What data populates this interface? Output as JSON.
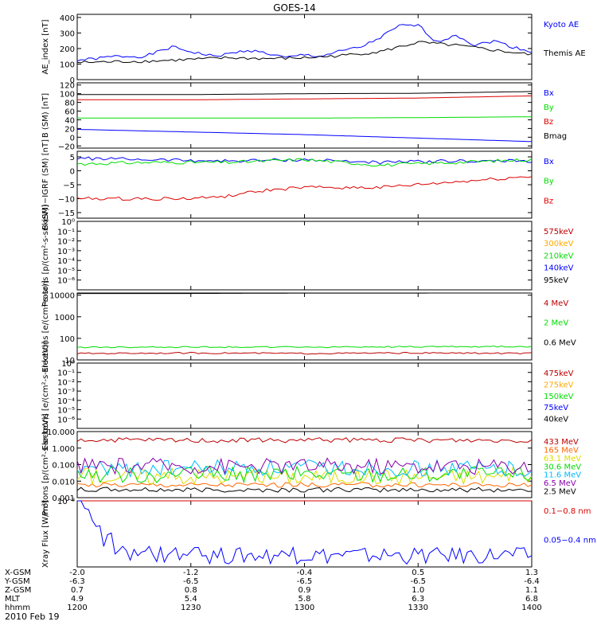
{
  "title": "GOES-14",
  "date_label": "2010 Feb 19",
  "ephemeris": {
    "rows": [
      {
        "label": "X-GSM",
        "values": [
          "-2.0",
          "-1.2",
          "-0.4",
          "0.5",
          "1.3"
        ]
      },
      {
        "label": "Y-GSM",
        "values": [
          "-6.3",
          "-6.5",
          "-6.5",
          "-6.5",
          "-6.4"
        ]
      },
      {
        "label": "Z-GSM",
        "values": [
          "0.7",
          "0.8",
          "0.9",
          "1.0",
          "1.1"
        ]
      },
      {
        "label": "MLT",
        "values": [
          "4.9",
          "5.4",
          "5.8",
          "6.3",
          "6.8"
        ]
      },
      {
        "label": "hhmm",
        "values": [
          "1200",
          "1230",
          "1300",
          "1330",
          "1400"
        ]
      }
    ]
  },
  "colors": {
    "black": "#000000",
    "blue": "#0000ff",
    "green": "#00dd00",
    "red": "#dd0000",
    "darkred": "#bb0000",
    "orange": "#ffaa00",
    "cyan": "#00bbff",
    "purple": "#8800aa",
    "yellow": "#dddd00",
    "orange2": "#ff6600"
  },
  "chart_data": [
    {
      "type": "line",
      "ylabel": "AE_index [nT]",
      "ylim": [
        0,
        420
      ],
      "yscale": "linear",
      "ticks": [
        0,
        100,
        200,
        300,
        400
      ],
      "tick_labels": [
        "0",
        "100",
        "200",
        "300",
        "400"
      ],
      "series": [
        {
          "name": "Kyoto AE",
          "color": "#0000ff",
          "t": [
            0,
            5,
            10,
            18,
            25,
            30,
            36,
            40,
            45,
            50,
            55,
            60,
            64,
            70,
            75,
            80,
            85,
            90,
            95,
            100,
            105,
            110,
            115,
            120
          ],
          "values": [
            125,
            135,
            150,
            150,
            210,
            180,
            150,
            165,
            190,
            170,
            140,
            160,
            150,
            185,
            210,
            270,
            345,
            350,
            240,
            290,
            220,
            250,
            210,
            180
          ]
        },
        {
          "name": "Themis AE",
          "color": "#000000",
          "t": [
            0,
            10,
            20,
            30,
            40,
            50,
            60,
            70,
            80,
            90,
            95,
            100,
            110,
            120
          ],
          "values": [
            110,
            115,
            120,
            130,
            140,
            135,
            140,
            155,
            180,
            240,
            230,
            220,
            190,
            160
          ]
        }
      ]
    },
    {
      "type": "line",
      "ylabel": "B (SM) [nT]",
      "ylim": [
        -25,
        125
      ],
      "yscale": "linear",
      "ticks": [
        -20,
        0,
        20,
        40,
        60,
        80,
        100,
        120
      ],
      "tick_labels": [
        "−20",
        "0",
        "20",
        "40",
        "60",
        "80",
        "100",
        "120"
      ],
      "series": [
        {
          "name": "Bx",
          "color": "#0000ff",
          "t": [
            0,
            30,
            60,
            90,
            120
          ],
          "values": [
            18,
            12,
            6,
            -2,
            -10
          ]
        },
        {
          "name": "By",
          "color": "#00dd00",
          "t": [
            0,
            30,
            60,
            90,
            120
          ],
          "values": [
            44,
            44,
            44,
            45,
            47
          ]
        },
        {
          "name": "Bz",
          "color": "#dd0000",
          "t": [
            0,
            30,
            60,
            90,
            120
          ],
          "values": [
            86,
            86,
            88,
            90,
            95
          ]
        },
        {
          "name": "Bmag",
          "color": "#000000",
          "t": [
            0,
            30,
            60,
            90,
            120
          ],
          "values": [
            98,
            98,
            100,
            101,
            105
          ]
        }
      ]
    },
    {
      "type": "line",
      "ylabel": "B (SM)−IGRF (SM) [nT]",
      "ylim": [
        -17,
        7
      ],
      "yscale": "linear",
      "ticks": [
        -15,
        -10,
        -5,
        0,
        5
      ],
      "tick_labels": [
        "−15",
        "−10",
        "−5",
        "0",
        "5"
      ],
      "series": [
        {
          "name": "Bx",
          "color": "#0000ff",
          "t": [
            0,
            20,
            40,
            60,
            80,
            100,
            120
          ],
          "values": [
            4.5,
            4,
            3.5,
            4,
            3,
            3.5,
            3.5
          ]
        },
        {
          "name": "By",
          "color": "#00dd00",
          "t": [
            0,
            20,
            40,
            60,
            80,
            100,
            120
          ],
          "values": [
            2.5,
            3,
            3,
            4,
            2,
            3,
            4
          ]
        },
        {
          "name": "Bz",
          "color": "#dd0000",
          "t": [
            0,
            20,
            30,
            40,
            50,
            60,
            70,
            80,
            90,
            100,
            120
          ],
          "values": [
            -10,
            -10,
            -10,
            -9,
            -7,
            -6,
            -6,
            -6,
            -5,
            -4,
            -2
          ]
        }
      ]
    },
    {
      "type": "line",
      "ylabel": "Protons [p/(cm²-s-sr-keV)]",
      "ylim_log": [
        -7,
        0
      ],
      "yscale": "log",
      "ticks": [
        0,
        -1,
        -2,
        -3,
        -4,
        -5,
        -6
      ],
      "tick_labels": [
        "10⁰",
        "10⁻¹",
        "10⁻²",
        "10⁻³",
        "10⁻⁴",
        "10⁻⁵",
        "10⁻⁶"
      ],
      "series": [
        {
          "name": "575keV",
          "color": "#bb0000"
        },
        {
          "name": "300keV",
          "color": "#ffaa00"
        },
        {
          "name": "210keV",
          "color": "#00dd00"
        },
        {
          "name": "140keV",
          "color": "#0000ff"
        },
        {
          "name": "95keV",
          "color": "#000000"
        }
      ]
    },
    {
      "type": "line",
      "ylabel": "Electrons [e/(cm²-s-sr)]",
      "ylim_log": [
        1,
        4.1
      ],
      "yscale": "log",
      "ticks": [
        4,
        3,
        2,
        1
      ],
      "tick_labels": [
        "10000",
        "1000",
        "100",
        "10"
      ],
      "series": [
        {
          "name": "4 MeV",
          "color": "#bb0000",
          "t": [
            0,
            30,
            60,
            90,
            120
          ],
          "values": [
            20,
            21,
            20,
            21,
            20
          ]
        },
        {
          "name": "2 MeV",
          "color": "#00dd00",
          "t": [
            0,
            30,
            60,
            90,
            120
          ],
          "values": [
            38,
            40,
            39,
            41,
            42
          ]
        },
        {
          "name": "0.6 MeV",
          "color": "#000000",
          "t": [
            0,
            30,
            60,
            90,
            120
          ],
          "values": [
            12000,
            12000,
            12500,
            12500,
            13000
          ]
        }
      ]
    },
    {
      "type": "line",
      "ylabel": "Electrons [e/(cm²-s-sr-keV)]",
      "ylim_log": [
        -7,
        0
      ],
      "yscale": "log",
      "ticks": [
        0,
        -1,
        -2,
        -3,
        -4,
        -5,
        -6
      ],
      "tick_labels": [
        "10⁰",
        "10⁻¹",
        "10⁻²",
        "10⁻³",
        "10⁻⁴",
        "10⁻⁵",
        "10⁻⁶"
      ],
      "series": [
        {
          "name": "475keV",
          "color": "#bb0000"
        },
        {
          "name": "275keV",
          "color": "#ffaa00"
        },
        {
          "name": "150keV",
          "color": "#00dd00"
        },
        {
          "name": "75keV",
          "color": "#0000ff"
        },
        {
          "name": "40keV",
          "color": "#000000"
        }
      ]
    },
    {
      "type": "line",
      "ylabel": "Protons [p/(cm²-s-sr-keV)]",
      "ylim_log": [
        -3,
        1
      ],
      "yscale": "log",
      "ticks": [
        1,
        0,
        -1,
        -2,
        -3
      ],
      "tick_labels": [
        "10.000",
        "1.000",
        "0.100",
        "0.010",
        "0.001"
      ],
      "series": [
        {
          "name": "433 MeV",
          "color": "#bb0000",
          "level": 3.0
        },
        {
          "name": "165 MeV",
          "color": "#ff6600",
          "level": 0.006
        },
        {
          "name": "63.1 MeV",
          "color": "#dddd00",
          "level": 0.02
        },
        {
          "name": "30.6 MeV",
          "color": "#00dd00",
          "level": 0.025
        },
        {
          "name": "11.6 MeV",
          "color": "#00bbff",
          "level": 0.06
        },
        {
          "name": "6.5 MeV",
          "color": "#8800aa",
          "level": 0.08
        },
        {
          "name": "2.5 MeV",
          "color": "#000000",
          "level": 0.003
        }
      ]
    },
    {
      "type": "line",
      "ylabel": "Xray Flux [W/m²]",
      "ylim_log": [
        -9,
        -8
      ],
      "yscale": "log",
      "ticks": [
        -8,
        -7,
        -6
      ],
      "tick_labels": [
        "10⁻⁸",
        "10⁻⁷",
        "10⁻⁶"
      ],
      "series": [
        {
          "name": "0.1−0.8 nm",
          "color": "#dd0000",
          "t": [
            0,
            15,
            30,
            45,
            60,
            75,
            90,
            105,
            120
          ],
          "values": [
            1.2e-07,
            1.1e-07,
            9e-08,
            7e-08,
            6.5e-08,
            6e-08,
            6e-08,
            5.5e-08,
            5e-08
          ]
        },
        {
          "name": "0.05−0.4 nm",
          "color": "#0000ff",
          "t": [
            0,
            2,
            5,
            10,
            30,
            60,
            90,
            120
          ],
          "values": [
            7e-09,
            3e-09,
            1.5e-09,
            1.2e-09,
            1.1e-09,
            1.1e-09,
            1.1e-09,
            1.1e-09
          ]
        }
      ]
    }
  ]
}
